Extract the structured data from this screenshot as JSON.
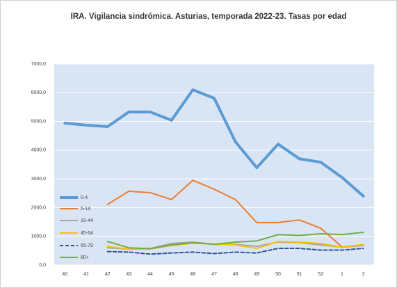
{
  "chart_data": {
    "type": "line",
    "title": "IRA. Vigilancia sindrómica. Asturias, temporada 2022-23. Tasas por edad",
    "categories": [
      "40",
      "41",
      "42",
      "43",
      "44",
      "45",
      "46",
      "47",
      "48",
      "49",
      "50",
      "51",
      "52",
      "1",
      "2"
    ],
    "series": [
      {
        "name": "0-4",
        "color": "#5b9bd5",
        "line_width": 4,
        "values": [
          4940,
          4870,
          4820,
          5330,
          5330,
          5040,
          6100,
          5810,
          4290,
          3390,
          4210,
          3700,
          3580,
          3050,
          2400
        ]
      },
      {
        "name": "5-14",
        "color": "#ed7d31",
        "line_width": 2,
        "values": [
          null,
          null,
          2110,
          2570,
          2520,
          2280,
          2950,
          2640,
          2280,
          1480,
          1480,
          1570,
          1280,
          630,
          700
        ]
      },
      {
        "name": "15-44",
        "color": "#a5a5a5",
        "line_width": 2,
        "values": [
          null,
          null,
          600,
          550,
          580,
          750,
          800,
          720,
          720,
          650,
          800,
          780,
          700,
          620,
          680
        ]
      },
      {
        "name": "45-64",
        "color": "#ffc000",
        "line_width": 2,
        "values": [
          null,
          null,
          650,
          550,
          560,
          680,
          760,
          730,
          700,
          580,
          820,
          800,
          750,
          620,
          720
        ]
      },
      {
        "name": "65-79",
        "color": "#2f5597",
        "line_width": 2,
        "dashed": true,
        "values": [
          null,
          null,
          470,
          450,
          380,
          420,
          450,
          400,
          450,
          420,
          580,
          580,
          520,
          520,
          580
        ]
      },
      {
        "name": "80+",
        "color": "#70ad47",
        "line_width": 2,
        "values": [
          null,
          null,
          820,
          600,
          570,
          700,
          780,
          720,
          800,
          840,
          1060,
          1030,
          1090,
          1060,
          1140
        ]
      }
    ],
    "ylim": [
      0,
      7000
    ],
    "yticks": [
      {
        "value": 0,
        "label": "0,0"
      },
      {
        "value": 1000,
        "label": "1000,0"
      },
      {
        "value": 2000,
        "label": "2000,0"
      },
      {
        "value": 3000,
        "label": "3000,0"
      },
      {
        "value": 4000,
        "label": "4000,0"
      },
      {
        "value": 5000,
        "label": "5000,0"
      },
      {
        "value": 6000,
        "label": "6000,0"
      },
      {
        "value": 7000,
        "label": "7000,0"
      }
    ],
    "grid": true,
    "legend": "left",
    "plot_background": "#d9e5f4"
  }
}
